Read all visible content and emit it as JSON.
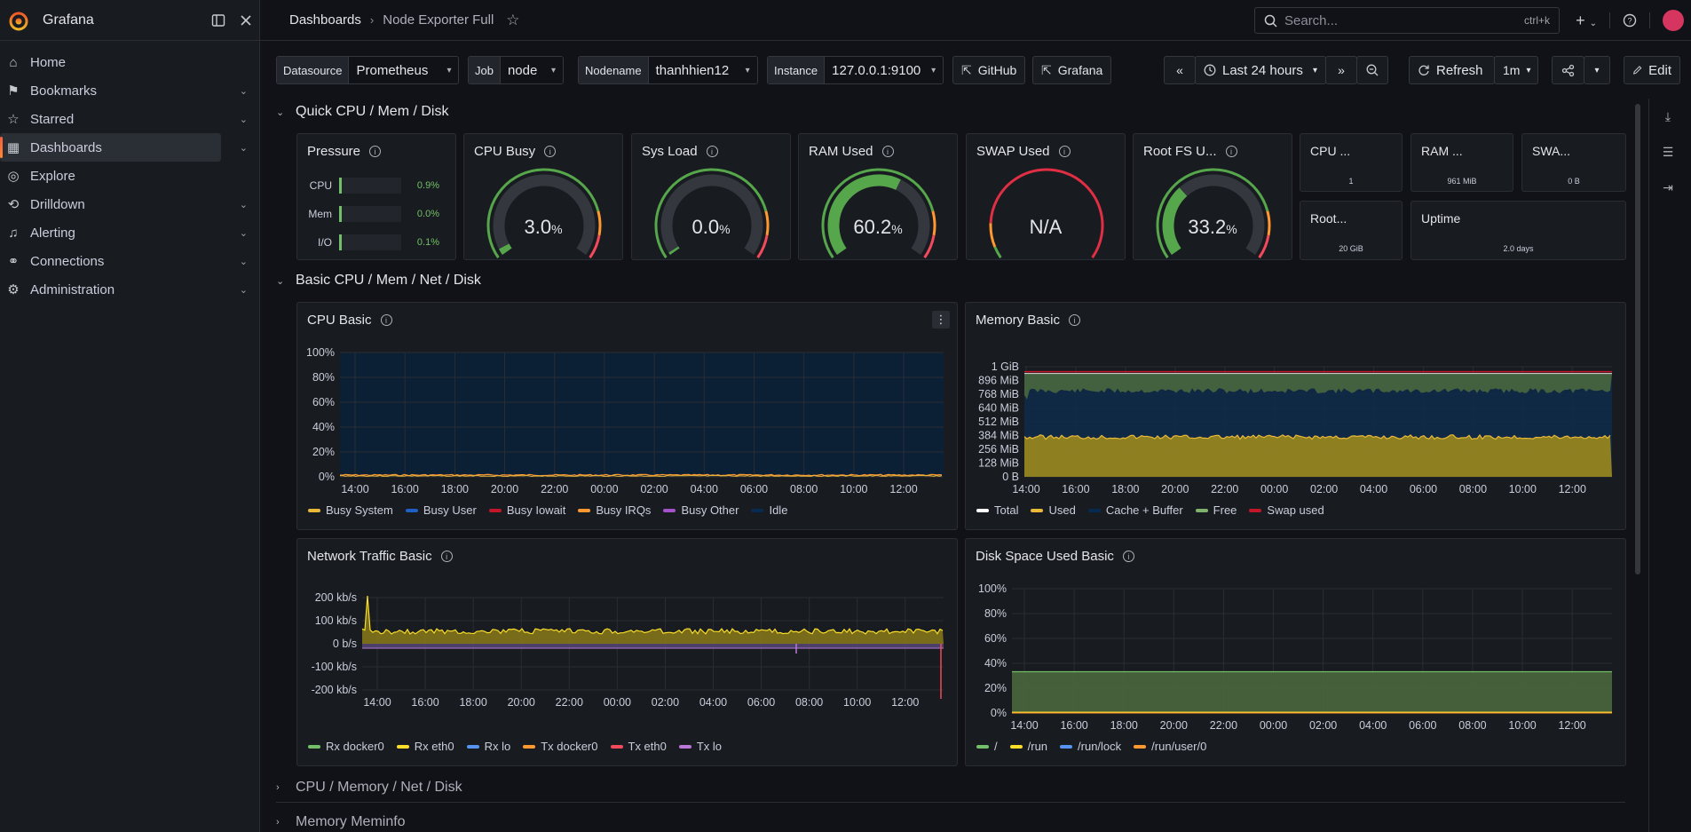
{
  "app": {
    "name": "Grafana"
  },
  "sidebar": {
    "items": [
      {
        "label": "Home",
        "icon": "home-icon",
        "chevron": false
      },
      {
        "label": "Bookmarks",
        "icon": "bookmark-icon",
        "chevron": true
      },
      {
        "label": "Starred",
        "icon": "star-icon",
        "chevron": true
      },
      {
        "label": "Dashboards",
        "icon": "apps-icon",
        "chevron": true,
        "active": true
      },
      {
        "label": "Explore",
        "icon": "compass-icon",
        "chevron": false
      },
      {
        "label": "Drilldown",
        "icon": "drilldown-icon",
        "chevron": true
      },
      {
        "label": "Alerting",
        "icon": "bell-icon",
        "chevron": true
      },
      {
        "label": "Connections",
        "icon": "link-icon",
        "chevron": true
      },
      {
        "label": "Administration",
        "icon": "gear-icon",
        "chevron": true
      }
    ]
  },
  "topbar": {
    "breadcrumb_root": "Dashboards",
    "breadcrumb_current": "Node Exporter Full",
    "search_placeholder": "Search...",
    "search_shortcut": "ctrl+k"
  },
  "variables": {
    "datasource": {
      "label": "Datasource",
      "value": "Prometheus"
    },
    "job": {
      "label": "Job",
      "value": "node"
    },
    "nodename": {
      "label": "Nodename",
      "value": "thanhhien12"
    },
    "instance": {
      "label": "Instance",
      "value": "127.0.0.1:9100"
    }
  },
  "links": {
    "github": "GitHub",
    "grafana": "Grafana"
  },
  "time": {
    "range": "Last 24 hours",
    "refresh": "Refresh",
    "interval": "1m",
    "edit": "Edit"
  },
  "sections": {
    "quick": "Quick CPU / Mem / Disk",
    "basic": "Basic CPU / Mem / Net / Disk",
    "cpu_mem_net_disk": "CPU / Memory / Net / Disk",
    "meminfo": "Memory Meminfo"
  },
  "quick_panels": {
    "pressure": {
      "title": "Pressure",
      "rows": [
        {
          "label": "CPU",
          "value": "0.9%",
          "fraction": 0.009
        },
        {
          "label": "Mem",
          "value": "0.0%",
          "fraction": 0.0
        },
        {
          "label": "I/O",
          "value": "0.1%",
          "fraction": 0.001
        }
      ]
    },
    "gauges": [
      {
        "title": "CPU Busy",
        "value": "3.0",
        "unit": "%",
        "percent": 3.0
      },
      {
        "title": "Sys Load",
        "value": "0.0",
        "unit": "%",
        "percent": 0.0
      },
      {
        "title": "RAM Used",
        "value": "60.2",
        "unit": "%",
        "percent": 60.2
      },
      {
        "title": "SWAP Used",
        "value": "N/A",
        "unit": "",
        "percent": null
      },
      {
        "title": "Root FS U...",
        "value": "33.2",
        "unit": "%",
        "percent": 33.2
      }
    ],
    "stats": [
      {
        "title": "CPU ...",
        "value": "1"
      },
      {
        "title": "RAM ...",
        "value": "961 MiB"
      },
      {
        "title": "SWA...",
        "value": "0 B"
      },
      {
        "title": "Root...",
        "value": "20 GiB"
      },
      {
        "title": "Uptime",
        "value": "2.0 days"
      }
    ]
  },
  "time_ticks": [
    "14:00",
    "16:00",
    "18:00",
    "20:00",
    "22:00",
    "00:00",
    "02:00",
    "04:00",
    "06:00",
    "08:00",
    "10:00",
    "12:00"
  ],
  "chart_data": [
    {
      "type": "line",
      "title": "CPU Basic",
      "yticks": [
        "100%",
        "80%",
        "60%",
        "40%",
        "20%",
        "0%"
      ],
      "ylim": [
        0,
        100
      ],
      "series": [
        {
          "name": "Busy System",
          "color": "#EAB839"
        },
        {
          "name": "Busy User",
          "color": "#1F60C4"
        },
        {
          "name": "Busy Iowait",
          "color": "#C4162A"
        },
        {
          "name": "Busy IRQs",
          "color": "#FF9830"
        },
        {
          "name": "Busy Other",
          "color": "#A352CC"
        },
        {
          "name": "Idle",
          "color": "#052B51"
        }
      ]
    },
    {
      "type": "area",
      "title": "Memory Basic",
      "yticks": [
        "1 GiB",
        "896 MiB",
        "768 MiB",
        "640 MiB",
        "512 MiB",
        "384 MiB",
        "256 MiB",
        "128 MiB",
        "0 B"
      ],
      "series": [
        {
          "name": "Total",
          "color": "#FFFFFF"
        },
        {
          "name": "Used",
          "color": "#EAB839"
        },
        {
          "name": "Cache + Buffer",
          "color": "#052B51"
        },
        {
          "name": "Free",
          "color": "#7EB26D"
        },
        {
          "name": "Swap used",
          "color": "#C4162A"
        }
      ]
    },
    {
      "type": "area",
      "title": "Network Traffic Basic",
      "yticks": [
        "200 kb/s",
        "100 kb/s",
        "0 b/s",
        "-100 kb/s",
        "-200 kb/s"
      ],
      "series": [
        {
          "name": "Rx docker0",
          "color": "#73BF69"
        },
        {
          "name": "Rx eth0",
          "color": "#FADE2A"
        },
        {
          "name": "Rx lo",
          "color": "#5794F2"
        },
        {
          "name": "Tx docker0",
          "color": "#FF9830"
        },
        {
          "name": "Tx eth0",
          "color": "#F2495C"
        },
        {
          "name": "Tx lo",
          "color": "#B877D9"
        }
      ]
    },
    {
      "type": "area",
      "title": "Disk Space Used Basic",
      "yticks": [
        "100%",
        "80%",
        "60%",
        "40%",
        "20%",
        "0%"
      ],
      "ylim": [
        0,
        100
      ],
      "series": [
        {
          "name": "/",
          "color": "#73BF69",
          "value": 33.2
        },
        {
          "name": "/run",
          "color": "#FADE2A",
          "value": 0.5
        },
        {
          "name": "/run/lock",
          "color": "#5794F2",
          "value": 0
        },
        {
          "name": "/run/user/0",
          "color": "#FF9830",
          "value": 0
        }
      ]
    }
  ]
}
